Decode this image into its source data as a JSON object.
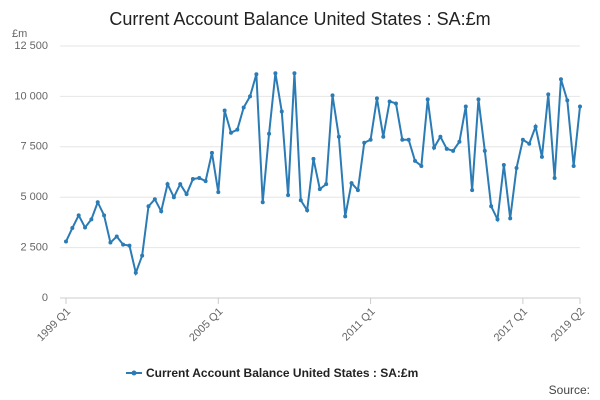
{
  "chart_data": {
    "type": "line",
    "title": "Current Account Balance United States : SA:£m",
    "y_label": "£m",
    "source": "Source:",
    "categories": [
      "1999 Q1",
      null,
      null,
      null,
      null,
      null,
      null,
      null,
      null,
      null,
      null,
      null,
      null,
      null,
      null,
      null,
      null,
      null,
      null,
      null,
      null,
      null,
      null,
      null,
      "2005 Q1",
      null,
      null,
      null,
      null,
      null,
      null,
      null,
      null,
      null,
      null,
      null,
      null,
      null,
      null,
      null,
      null,
      null,
      null,
      null,
      null,
      null,
      null,
      null,
      "2011 Q1",
      null,
      null,
      null,
      null,
      null,
      null,
      null,
      null,
      null,
      null,
      null,
      null,
      null,
      null,
      null,
      null,
      null,
      null,
      null,
      null,
      null,
      null,
      null,
      "2017 Q1",
      null,
      null,
      null,
      null,
      null,
      null,
      null,
      null,
      "2019 Q2"
    ],
    "series": [
      {
        "name": "Current Account Balance United States : SA:£m",
        "color": "#2b7bb5",
        "values": [
          2800,
          3470,
          4100,
          3500,
          3900,
          4750,
          4100,
          2750,
          3050,
          2650,
          2600,
          1250,
          2100,
          4550,
          4900,
          4300,
          5650,
          5000,
          5650,
          5150,
          5900,
          5950,
          5800,
          7200,
          5250,
          9300,
          8200,
          8350,
          9450,
          10000,
          11100,
          4750,
          8150,
          11150,
          9250,
          5100,
          11150,
          4850,
          4350,
          6900,
          5400,
          5650,
          10050,
          8000,
          4050,
          5700,
          5350,
          7700,
          7850,
          9900,
          8000,
          9750,
          9650,
          7850,
          7850,
          6800,
          6550,
          9850,
          7450,
          8000,
          7400,
          7300,
          7750,
          9500,
          5350,
          9850,
          7300,
          4550,
          3900,
          6600,
          3950,
          6450,
          7850,
          7650,
          8500,
          7000,
          10100,
          5950,
          10850,
          9800,
          6550,
          9500
        ]
      }
    ],
    "ylim": [
      0,
      12500
    ],
    "yticks": [
      0,
      {
        "value": 2500,
        "label": "2 500"
      },
      {
        "value": 5000,
        "label": "5 000"
      },
      {
        "value": 7500,
        "label": "7 500"
      },
      {
        "value": 10000,
        "label": "10 000"
      },
      {
        "value": 12500,
        "label": "12 500"
      }
    ],
    "grid": true
  }
}
